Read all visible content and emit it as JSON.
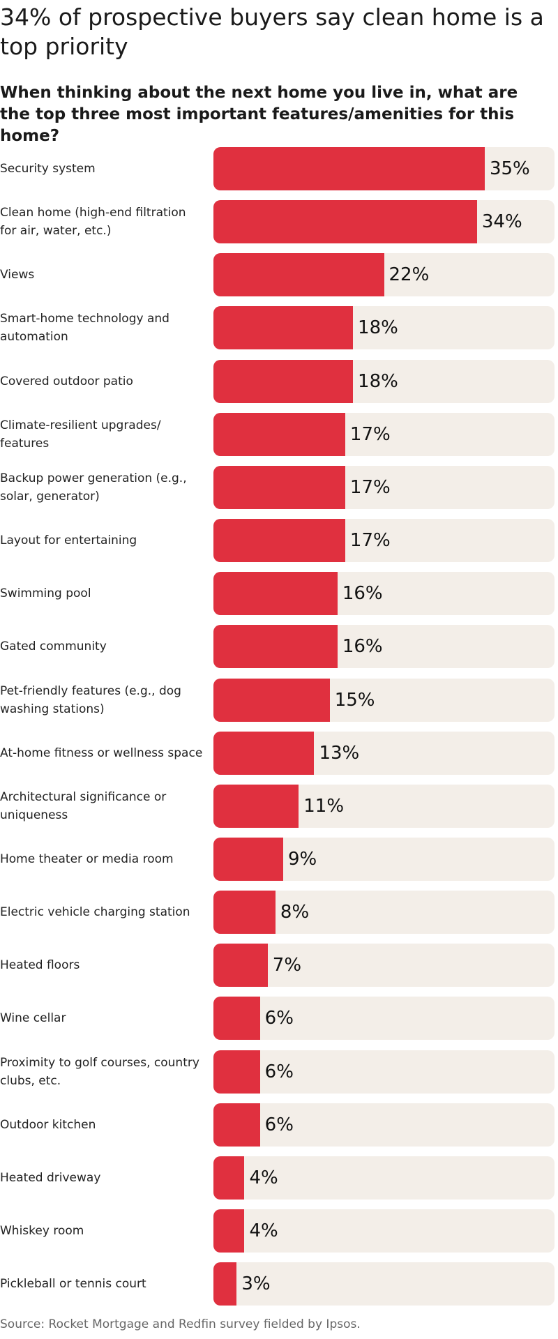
{
  "chart_data": {
    "type": "barh",
    "title": "34% of prospective buyers say clean home is a top priority",
    "subtitle": "When thinking about the next home you live in, what are the top three most important features/amenities for this home?",
    "categories": [
      "Security system",
      "Clean home (high-end filtration for air, water, etc.)",
      "Views",
      "Smart-home technology and automation",
      "Covered outdoor patio",
      "Climate-resilient upgrades/ features",
      "Backup power generation (e.g., solar, generator)",
      "Layout for entertaining",
      "Swimming pool",
      "Gated community",
      "Pet-friendly features (e.g., dog washing stations)",
      "At-home fitness or wellness space",
      "Architectural significance or uniqueness",
      "Home theater or media room",
      "Electric vehicle charging station",
      "Heated floors",
      "Wine cellar",
      "Proximity to golf courses, country clubs, etc.",
      "Outdoor kitchen",
      "Heated driveway",
      "Whiskey room",
      "Pickleball or tennis court"
    ],
    "values": [
      35,
      34,
      22,
      18,
      18,
      17,
      17,
      17,
      16,
      16,
      15,
      13,
      11,
      9,
      8,
      7,
      6,
      6,
      6,
      4,
      4,
      3
    ],
    "value_labels": [
      "35%",
      "34%",
      "22%",
      "18%",
      "18%",
      "17%",
      "17%",
      "17%",
      "16%",
      "16%",
      "15%",
      "13%",
      "11%",
      "9%",
      "8%",
      "7%",
      "6%",
      "6%",
      "6%",
      "4%",
      "4%",
      "3%"
    ],
    "xlim": [
      0,
      44
    ],
    "color": "#e0303f",
    "track_color": "#f3eee8",
    "source": "Source: Rocket Mortgage and Redfin survey fielded by Ipsos."
  }
}
